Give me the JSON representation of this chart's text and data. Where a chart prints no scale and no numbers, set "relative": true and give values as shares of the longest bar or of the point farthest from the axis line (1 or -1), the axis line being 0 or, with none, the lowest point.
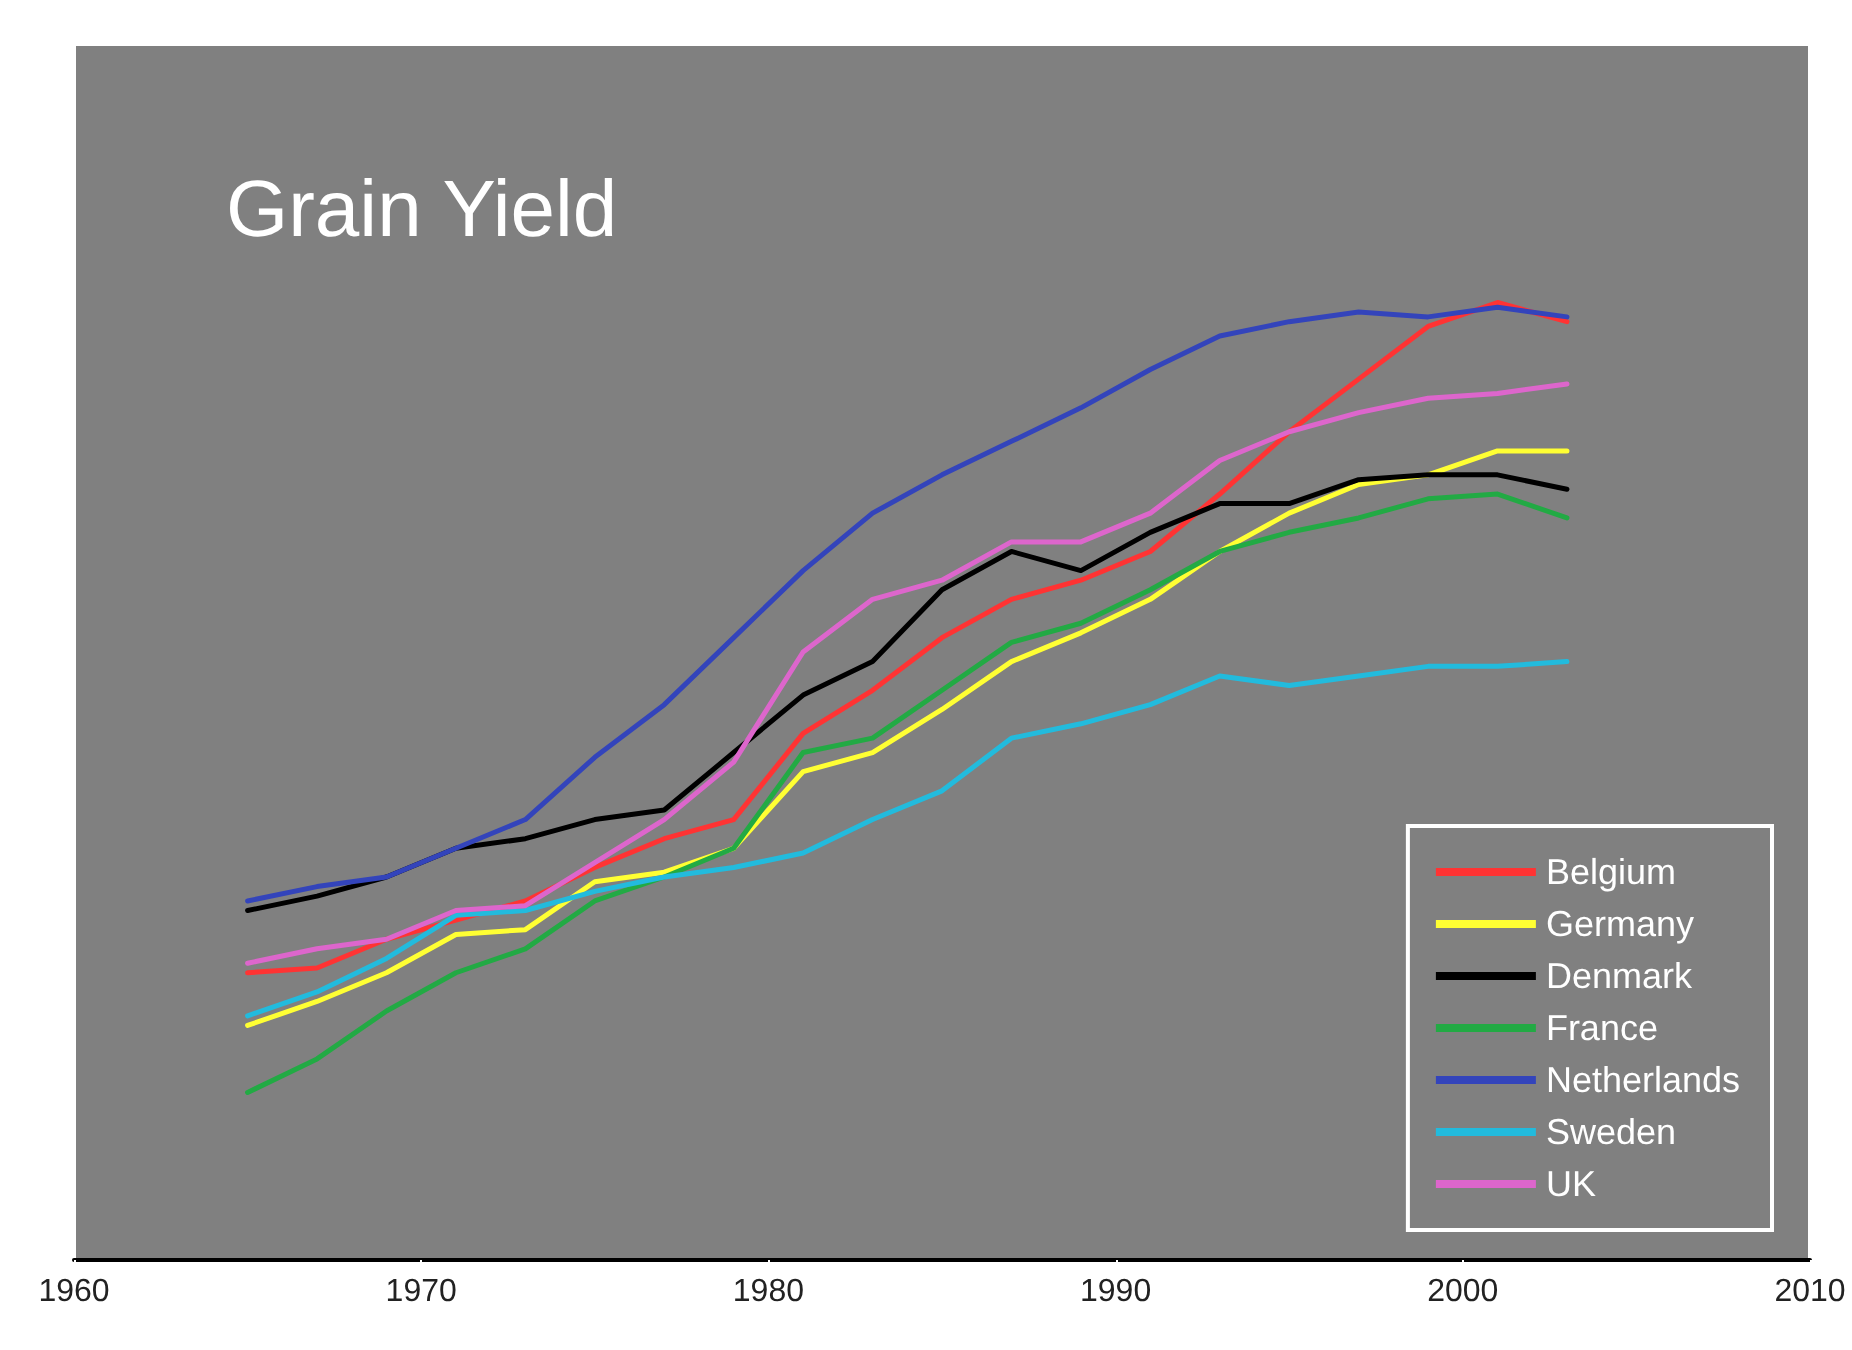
{
  "chart_data": {
    "type": "line",
    "title": "Grain Yield",
    "relative": true,
    "x": [
      1965,
      1967,
      1969,
      1971,
      1973,
      1975,
      1977,
      1979,
      1981,
      1983,
      1985,
      1987,
      1989,
      1991,
      1993,
      1995,
      1997,
      1999,
      2001,
      2003
    ],
    "xlim": [
      1960,
      2010
    ],
    "xticks": [
      1960,
      1970,
      1980,
      1990,
      2000,
      2010
    ],
    "tick_labels": "x",
    "legend": "bottom right",
    "marker": "none",
    "line_style": "solid",
    "grid": false,
    "series": [
      {
        "name": "Belgium",
        "color": "#ff3333",
        "values": [
          0.3,
          0.305,
          0.335,
          0.355,
          0.375,
          0.41,
          0.44,
          0.46,
          0.55,
          0.595,
          0.65,
          0.69,
          0.71,
          0.74,
          0.8,
          0.865,
          0.92,
          0.975,
          1.0,
          0.98
        ]
      },
      {
        "name": "Germany",
        "color": "#ffff33",
        "values": [
          0.245,
          0.27,
          0.3,
          0.34,
          0.345,
          0.395,
          0.405,
          0.43,
          0.51,
          0.53,
          0.575,
          0.625,
          0.655,
          0.69,
          0.74,
          0.78,
          0.81,
          0.82,
          0.845,
          0.845
        ]
      },
      {
        "name": "Denmark",
        "color": "#000000",
        "values": [
          0.365,
          0.38,
          0.4,
          0.43,
          0.44,
          0.46,
          0.47,
          0.53,
          0.59,
          0.625,
          0.7,
          0.74,
          0.72,
          0.76,
          0.79,
          0.79,
          0.815,
          0.82,
          0.82,
          0.805
        ]
      },
      {
        "name": "France",
        "color": "#22aa44",
        "values": [
          0.175,
          0.21,
          0.26,
          0.3,
          0.325,
          0.375,
          0.4,
          0.43,
          0.53,
          0.545,
          0.595,
          0.645,
          0.665,
          0.7,
          0.74,
          0.76,
          0.775,
          0.795,
          0.8,
          0.775
        ]
      },
      {
        "name": "Netherlands",
        "color": "#3344bb",
        "values": [
          0.375,
          0.39,
          0.4,
          0.43,
          0.46,
          0.525,
          0.58,
          0.65,
          0.72,
          0.78,
          0.82,
          0.855,
          0.89,
          0.93,
          0.965,
          0.98,
          0.99,
          0.985,
          0.995,
          0.985
        ]
      },
      {
        "name": "Sweden",
        "color": "#22bbdd",
        "values": [
          0.255,
          0.28,
          0.315,
          0.36,
          0.365,
          0.385,
          0.4,
          0.41,
          0.425,
          0.46,
          0.49,
          0.545,
          0.56,
          0.58,
          0.61,
          0.6,
          0.61,
          0.62,
          0.62,
          0.625
        ]
      },
      {
        "name": "UK",
        "color": "#dd66cc",
        "values": [
          0.31,
          0.325,
          0.335,
          0.365,
          0.37,
          0.415,
          0.46,
          0.52,
          0.635,
          0.69,
          0.71,
          0.75,
          0.75,
          0.78,
          0.835,
          0.865,
          0.885,
          0.9,
          0.905,
          0.915
        ]
      }
    ]
  }
}
